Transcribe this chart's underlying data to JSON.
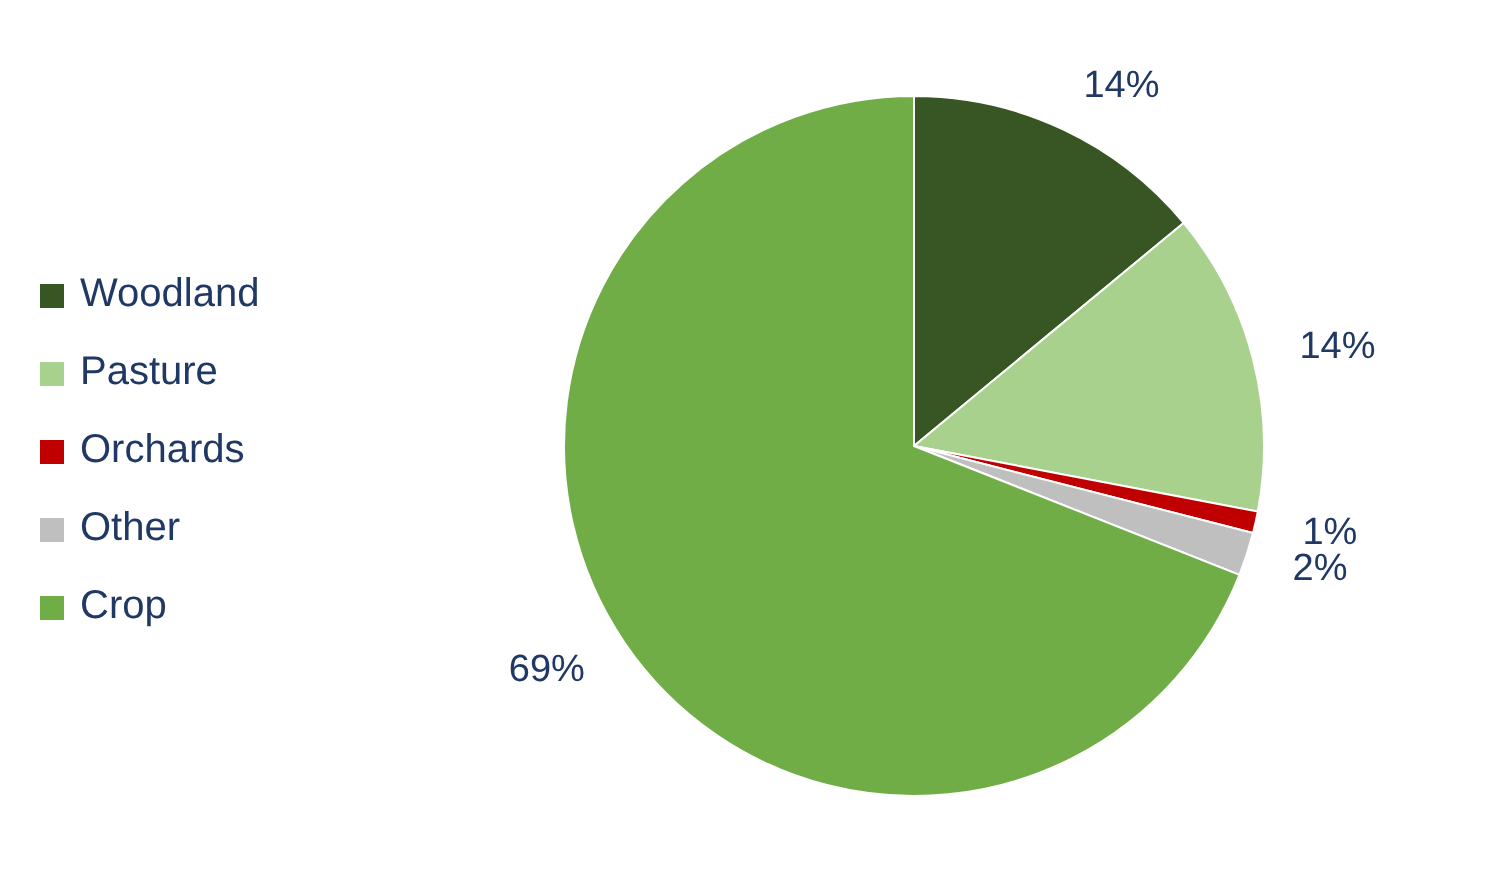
{
  "chart_data": {
    "type": "pie",
    "categories": [
      "Woodland",
      "Pasture",
      "Orchards",
      "Other",
      "Crop"
    ],
    "values": [
      14,
      14,
      1,
      2,
      69
    ],
    "colors": [
      "#375623",
      "#a9d18e",
      "#c00000",
      "#bfbfbf",
      "#70ad47"
    ],
    "value_labels": [
      "14%",
      "14%",
      "1%",
      "2%",
      "69%"
    ],
    "legend": "left"
  }
}
